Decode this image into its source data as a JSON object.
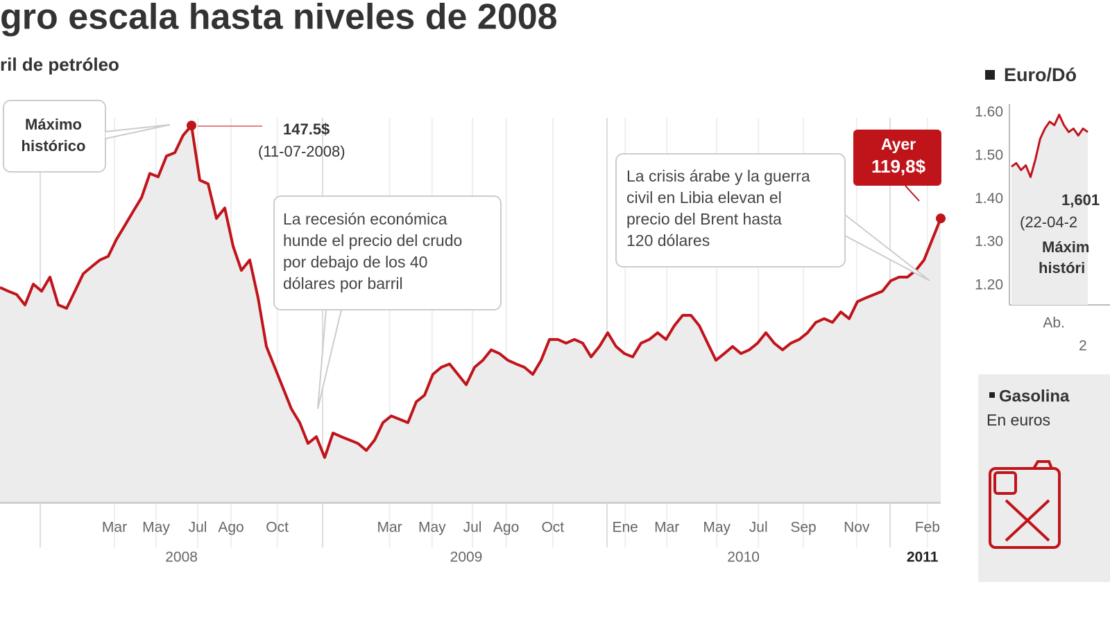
{
  "chart_data": [
    {
      "type": "line",
      "title": "gro escala hasta niveles de 2008",
      "subtitle": "ril de petróleo",
      "color": "#c0141b",
      "values": [
        99.2,
        98.1,
        97.1,
        94.0,
        100.2,
        98.1,
        102.3,
        94.0,
        93.0,
        98.1,
        103.3,
        105.4,
        107.4,
        108.5,
        113.6,
        117.7,
        121.9,
        126.0,
        133.2,
        132.2,
        138.4,
        139.4,
        144.6,
        147.5,
        131.2,
        130.1,
        119.8,
        122.9,
        111.5,
        104.3,
        107.4,
        96.1,
        81.6,
        75.4,
        69.2,
        63.0,
        58.9,
        52.7,
        54.7,
        48.5,
        55.8,
        54.7,
        53.7,
        52.7,
        50.6,
        53.7,
        58.9,
        60.9,
        59.9,
        58.9,
        65.1,
        67.1,
        73.3,
        75.4,
        76.4,
        73.3,
        70.2,
        75.4,
        77.5,
        80.6,
        79.5,
        77.5,
        76.4,
        75.4,
        73.3,
        77.5,
        83.7,
        83.7,
        82.6,
        83.7,
        82.6,
        78.5,
        81.6,
        85.7,
        81.6,
        79.5,
        78.5,
        82.6,
        83.7,
        85.7,
        83.7,
        87.8,
        90.9,
        90.9,
        87.8,
        82.6,
        77.5,
        79.5,
        81.6,
        79.5,
        80.6,
        82.6,
        85.7,
        82.6,
        80.6,
        82.6,
        83.7,
        85.7,
        88.8,
        89.9,
        88.8,
        91.9,
        89.9,
        95.0,
        96.1,
        97.1,
        98.1,
        101.2,
        102.3,
        102.3,
        104.3,
        107.4,
        113.6,
        119.8
      ],
      "xlim": [
        0,
        113
      ],
      "ylim": [
        35,
        149.8
      ],
      "xticks": [
        {
          "value": 13.75,
          "label": "Mar"
        },
        {
          "value": 18.75,
          "label": "May"
        },
        {
          "value": 23.75,
          "label": "Jul"
        },
        {
          "value": 27.75,
          "label": "Ago"
        },
        {
          "value": 33.3,
          "label": "Oct"
        },
        {
          "value": 46.8,
          "label": "Mar"
        },
        {
          "value": 51.9,
          "label": "May"
        },
        {
          "value": 56.75,
          "label": "Jul"
        },
        {
          "value": 60.8,
          "label": "Ago"
        },
        {
          "value": 66.4,
          "label": "Oct"
        },
        {
          "value": 75.1,
          "label": "Ene"
        },
        {
          "value": 80.1,
          "label": "Mar"
        },
        {
          "value": 86.1,
          "label": "May"
        },
        {
          "value": 91.1,
          "label": "Jul"
        },
        {
          "value": 96.5,
          "label": "Sep"
        },
        {
          "value": 102.9,
          "label": "Nov"
        },
        {
          "value": 111.4,
          "label": "Feb"
        }
      ],
      "year_labels": [
        {
          "value": 21.8,
          "label": "2008"
        },
        {
          "value": 56.0,
          "label": "2009"
        },
        {
          "value": 89.3,
          "label": "2010"
        },
        {
          "value": 110.8,
          "label": "2011"
        }
      ],
      "annotations": {
        "peak": {
          "lines": [
            "Máximo",
            "histórico"
          ],
          "price": "147.5$",
          "date": "(11-07-2008)"
        },
        "recession": [
          "La recesión económica",
          "hunde el precio del crudo",
          "por debajo de los 40",
          "dólares por barril"
        ],
        "crisis": [
          "La crisis árabe y la guerra",
          "civil en Libia elevan el",
          "precio del Brent hasta",
          "120 dólares"
        ],
        "last": {
          "label": "Ayer",
          "price": "119,8$"
        }
      }
    },
    {
      "type": "line",
      "title": "Euro/Dó",
      "color": "#c0141b",
      "values": [
        1.475,
        1.483,
        1.467,
        1.478,
        1.451,
        1.491,
        1.539,
        1.563,
        1.579,
        1.571,
        1.595,
        1.571,
        1.555,
        1.563,
        1.547,
        1.563,
        1.555
      ],
      "xlim": [
        0,
        16
      ],
      "ylim": [
        1.155,
        1.62
      ],
      "yticks": [
        {
          "value": 1.6,
          "label": "1.60"
        },
        {
          "value": 1.5,
          "label": "1.50"
        },
        {
          "value": 1.4,
          "label": "1.40"
        },
        {
          "value": 1.3,
          "label": "1.30"
        },
        {
          "value": 1.2,
          "label": "1.20"
        }
      ],
      "xticks": [
        {
          "value": 8.9,
          "label": "Ab."
        }
      ],
      "year_fragment": "2",
      "annotation": [
        "1,601",
        "(22-04-2",
        "Máxim",
        "históri"
      ]
    }
  ],
  "gasoline_panel": {
    "title": "Gasolina",
    "subtitle": "En euros"
  }
}
